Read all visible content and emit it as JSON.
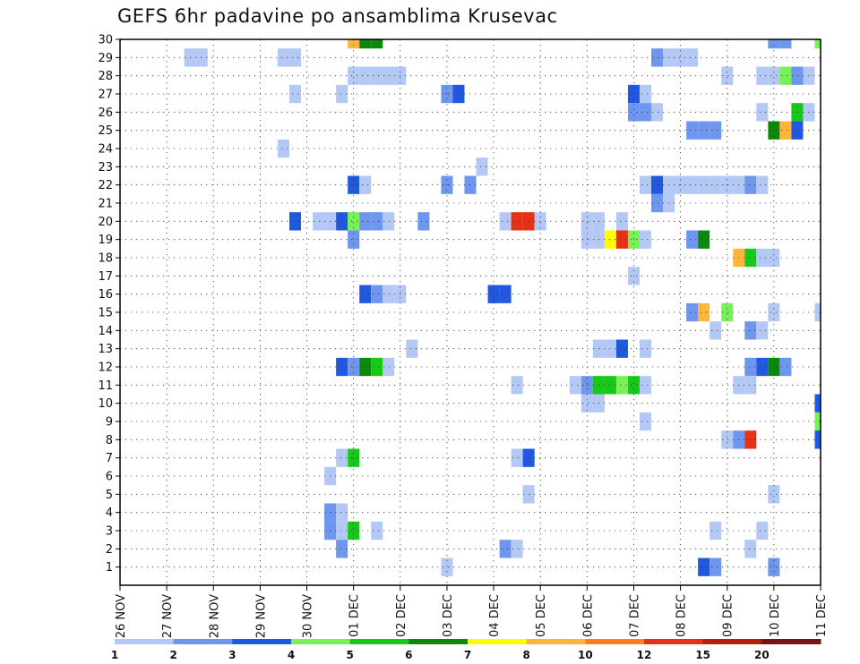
{
  "title": "GEFS 6hr padavine po ansamblima Krusevac",
  "chart_data": {
    "type": "heatmap",
    "title": "GEFS 6hr padavine po ansamblima Krusevac",
    "xlabel": "",
    "ylabel": "",
    "x_ticks": [
      "26 NOV",
      "27 NOV",
      "28 NOV",
      "29 NOV",
      "30 NOV",
      "01 DEC",
      "02 DEC",
      "03 DEC",
      "04 DEC",
      "05 DEC",
      "06 DEC",
      "07 DEC",
      "08 DEC",
      "09 DEC",
      "10 DEC",
      "11 DEC"
    ],
    "x_unit": "6-hour step from 26 NOV 00 UTC",
    "xlim": [
      0,
      60
    ],
    "y_ticks": [
      1,
      2,
      3,
      4,
      5,
      6,
      7,
      8,
      9,
      10,
      11,
      12,
      13,
      14,
      15,
      16,
      17,
      18,
      19,
      20,
      21,
      22,
      23,
      24,
      25,
      26,
      27,
      28,
      29,
      30
    ],
    "ylim": [
      0,
      30
    ],
    "grid": true,
    "colorbar": {
      "ticks": [
        "1",
        "2",
        "3",
        "4",
        "5",
        "6",
        "7",
        "8",
        "10",
        "12",
        "15",
        "20"
      ],
      "colors": [
        "#b4c8f5",
        "#6e96ee",
        "#2158e0",
        "#78f058",
        "#18c818",
        "#0a8a0a",
        "#ffff00",
        "#ffb43c",
        "#ff7e1e",
        "#e63214",
        "#b41e0a",
        "#781414"
      ]
    },
    "levels": [
      "1-2",
      "2-3",
      "3-4",
      "4-5",
      "5-6",
      "6-7",
      "7-8",
      "8-10",
      "10-12",
      "12-15",
      "15-20",
      ">20"
    ],
    "cells": [
      [
        20,
        30,
        7
      ],
      [
        21,
        30,
        5
      ],
      [
        22,
        30,
        5
      ],
      [
        56,
        30,
        1
      ],
      [
        57,
        30,
        1
      ],
      [
        60,
        30,
        3
      ],
      [
        6,
        29,
        0
      ],
      [
        7,
        29,
        0
      ],
      [
        14,
        29,
        0
      ],
      [
        15,
        29,
        0
      ],
      [
        46,
        29,
        1
      ],
      [
        47,
        29,
        0
      ],
      [
        48,
        29,
        0
      ],
      [
        49,
        29,
        0
      ],
      [
        20,
        28,
        0
      ],
      [
        21,
        28,
        0
      ],
      [
        22,
        28,
        0
      ],
      [
        23,
        28,
        0
      ],
      [
        24,
        28,
        0
      ],
      [
        52,
        28,
        0
      ],
      [
        55,
        28,
        0
      ],
      [
        56,
        28,
        0
      ],
      [
        57,
        28,
        3
      ],
      [
        58,
        28,
        1
      ],
      [
        59,
        28,
        0
      ],
      [
        15,
        27,
        0
      ],
      [
        19,
        27,
        0
      ],
      [
        28,
        27,
        1
      ],
      [
        29,
        27,
        2
      ],
      [
        44,
        27,
        2
      ],
      [
        45,
        27,
        0
      ],
      [
        44,
        26,
        1
      ],
      [
        45,
        26,
        1
      ],
      [
        46,
        26,
        0
      ],
      [
        55,
        26,
        0
      ],
      [
        58,
        26,
        4
      ],
      [
        59,
        26,
        0
      ],
      [
        49,
        25,
        1
      ],
      [
        50,
        25,
        1
      ],
      [
        51,
        25,
        1
      ],
      [
        56,
        25,
        5
      ],
      [
        57,
        25,
        7
      ],
      [
        58,
        25,
        2
      ],
      [
        14,
        24,
        0
      ],
      [
        31,
        23,
        0
      ],
      [
        20,
        22,
        2
      ],
      [
        21,
        22,
        0
      ],
      [
        28,
        22,
        1
      ],
      [
        30,
        22,
        1
      ],
      [
        45,
        22,
        0
      ],
      [
        46,
        22,
        2
      ],
      [
        47,
        22,
        0
      ],
      [
        48,
        22,
        0
      ],
      [
        49,
        22,
        0
      ],
      [
        50,
        22,
        0
      ],
      [
        51,
        22,
        0
      ],
      [
        52,
        22,
        0
      ],
      [
        53,
        22,
        0
      ],
      [
        54,
        22,
        1
      ],
      [
        55,
        22,
        0
      ],
      [
        46,
        21,
        1
      ],
      [
        47,
        21,
        0
      ],
      [
        15,
        20,
        2
      ],
      [
        17,
        20,
        0
      ],
      [
        18,
        20,
        0
      ],
      [
        19,
        20,
        2
      ],
      [
        20,
        20,
        3
      ],
      [
        21,
        20,
        1
      ],
      [
        22,
        20,
        1
      ],
      [
        23,
        20,
        0
      ],
      [
        26,
        20,
        1
      ],
      [
        33,
        20,
        0
      ],
      [
        34,
        20,
        9
      ],
      [
        35,
        20,
        9
      ],
      [
        36,
        20,
        0
      ],
      [
        40,
        20,
        0
      ],
      [
        41,
        20,
        0
      ],
      [
        43,
        20,
        0
      ],
      [
        20,
        19,
        1
      ],
      [
        40,
        19,
        0
      ],
      [
        41,
        19,
        0
      ],
      [
        42,
        19,
        6
      ],
      [
        43,
        19,
        9
      ],
      [
        44,
        19,
        3
      ],
      [
        45,
        19,
        0
      ],
      [
        49,
        19,
        1
      ],
      [
        50,
        19,
        5
      ],
      [
        53,
        18,
        7
      ],
      [
        54,
        18,
        4
      ],
      [
        55,
        18,
        0
      ],
      [
        56,
        18,
        0
      ],
      [
        44,
        17,
        0
      ],
      [
        21,
        16,
        2
      ],
      [
        22,
        16,
        1
      ],
      [
        23,
        16,
        0
      ],
      [
        24,
        16,
        0
      ],
      [
        32,
        16,
        2
      ],
      [
        33,
        16,
        2
      ],
      [
        49,
        15,
        1
      ],
      [
        50,
        15,
        7
      ],
      [
        52,
        15,
        3
      ],
      [
        56,
        15,
        0
      ],
      [
        60,
        15,
        0
      ],
      [
        51,
        14,
        0
      ],
      [
        54,
        14,
        1
      ],
      [
        55,
        14,
        0
      ],
      [
        25,
        13,
        0
      ],
      [
        41,
        13,
        0
      ],
      [
        42,
        13,
        0
      ],
      [
        43,
        13,
        2
      ],
      [
        45,
        13,
        0
      ],
      [
        19,
        12,
        2
      ],
      [
        20,
        12,
        1
      ],
      [
        21,
        12,
        5
      ],
      [
        22,
        12,
        4
      ],
      [
        23,
        12,
        0
      ],
      [
        54,
        12,
        1
      ],
      [
        55,
        12,
        2
      ],
      [
        56,
        12,
        5
      ],
      [
        57,
        12,
        1
      ],
      [
        34,
        11,
        0
      ],
      [
        39,
        11,
        0
      ],
      [
        40,
        11,
        1
      ],
      [
        41,
        11,
        4
      ],
      [
        42,
        11,
        4
      ],
      [
        43,
        11,
        3
      ],
      [
        44,
        11,
        4
      ],
      [
        45,
        11,
        0
      ],
      [
        53,
        11,
        0
      ],
      [
        54,
        11,
        0
      ],
      [
        40,
        10,
        0
      ],
      [
        41,
        10,
        0
      ],
      [
        60,
        10,
        2
      ],
      [
        45,
        9,
        0
      ],
      [
        60,
        9,
        3
      ],
      [
        52,
        8,
        0
      ],
      [
        53,
        8,
        1
      ],
      [
        54,
        8,
        9
      ],
      [
        60,
        8,
        2
      ],
      [
        19,
        7,
        0
      ],
      [
        20,
        7,
        4
      ],
      [
        34,
        7,
        0
      ],
      [
        35,
        7,
        2
      ],
      [
        18,
        6,
        0
      ],
      [
        35,
        5,
        0
      ],
      [
        56,
        5,
        0
      ],
      [
        18,
        4,
        1
      ],
      [
        19,
        4,
        0
      ],
      [
        18,
        3,
        1
      ],
      [
        19,
        3,
        0
      ],
      [
        20,
        3,
        4
      ],
      [
        22,
        3,
        0
      ],
      [
        51,
        3,
        0
      ],
      [
        55,
        3,
        0
      ],
      [
        19,
        2,
        1
      ],
      [
        33,
        2,
        1
      ],
      [
        34,
        2,
        0
      ],
      [
        54,
        2,
        0
      ],
      [
        28,
        1,
        0
      ],
      [
        50,
        1,
        2
      ],
      [
        51,
        1,
        1
      ],
      [
        56,
        1,
        1
      ]
    ]
  }
}
